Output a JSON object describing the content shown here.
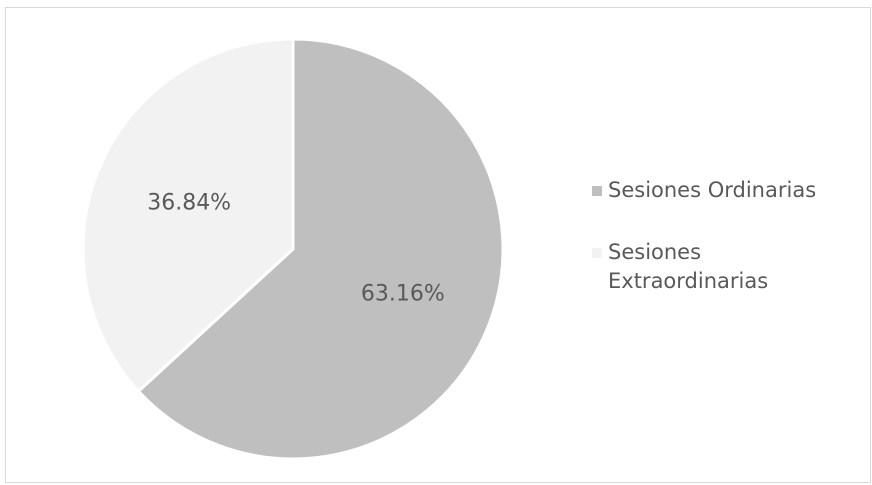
{
  "chart_data": {
    "type": "pie",
    "title": "",
    "slices": [
      {
        "name": "Sesiones Ordinarias",
        "value": 63.16,
        "label": "63.16%",
        "color": "#bfbfbf"
      },
      {
        "name": "Sesiones Extraordinarias",
        "value": 36.84,
        "label": "36.84%",
        "color": "#f2f2f2"
      }
    ],
    "legend_position": "right",
    "start_angle": "12 o'clock",
    "direction": "clockwise"
  }
}
